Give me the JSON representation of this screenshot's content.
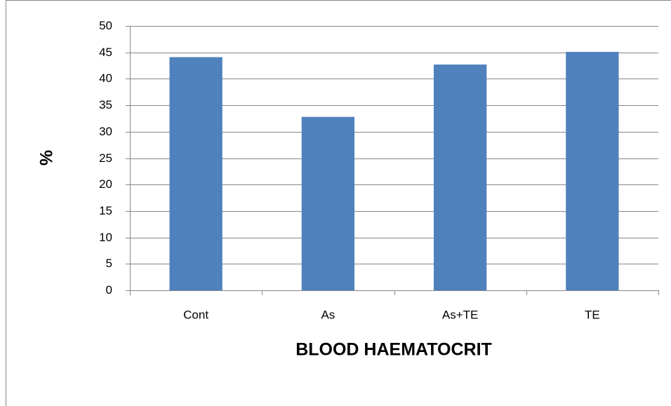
{
  "chart_data": {
    "type": "bar",
    "x_label": "BLOOD HAEMATOCRIT",
    "y_label": "%",
    "categories": [
      "Cont",
      "As",
      "As+TE",
      "TE"
    ],
    "values": [
      44.1,
      32.8,
      42.7,
      45.1
    ],
    "color": "#4f81bd",
    "ylim": [
      0,
      50
    ],
    "yticks": [
      0,
      5,
      10,
      15,
      20,
      25,
      30,
      35,
      40,
      45,
      50
    ],
    "grid": true
  }
}
